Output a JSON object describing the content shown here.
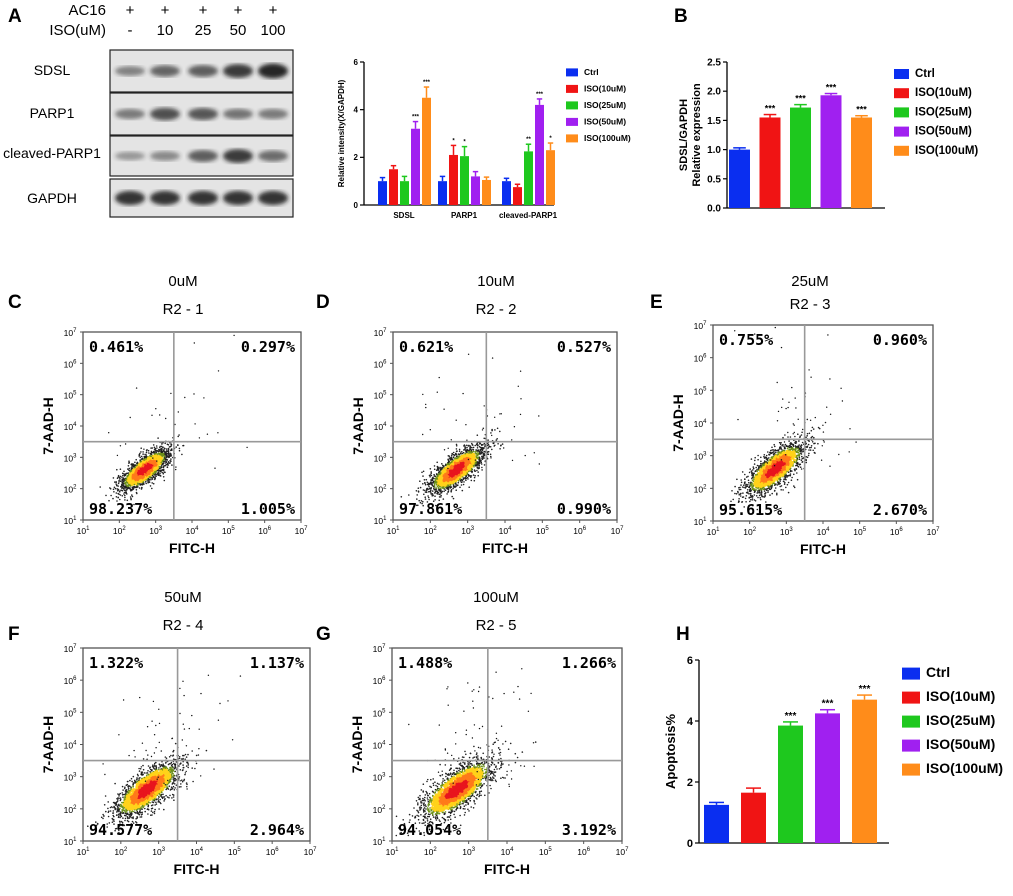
{
  "colors": {
    "ctrl": "#0a2ef0",
    "iso10": "#f01414",
    "iso25": "#1ec81e",
    "iso50": "#a020f0",
    "iso100": "#ff8c1a",
    "quad_line": "#999999",
    "frame": "#555555"
  },
  "panel_labels": [
    "A",
    "B",
    "C",
    "D",
    "E",
    "F",
    "G",
    "H"
  ],
  "western_blot": {
    "treatment_labels": [
      "AC16",
      "ISO(uM)"
    ],
    "ac16_row": [
      "+",
      "+",
      "+",
      "+",
      "+"
    ],
    "iso_row": [
      "-",
      "10",
      "25",
      "50",
      "100"
    ],
    "bands": [
      "SDSL",
      "PARP1",
      "cleaved-PARP1",
      "GAPDH"
    ],
    "intensity": [
      [
        0.35,
        0.55,
        0.6,
        0.85,
        1.0
      ],
      [
        0.4,
        0.7,
        0.65,
        0.45,
        0.4
      ],
      [
        0.2,
        0.3,
        0.6,
        0.85,
        0.5
      ],
      [
        0.9,
        0.9,
        0.9,
        0.9,
        0.9
      ]
    ]
  },
  "chart_data": [
    {
      "id": "A-quant",
      "type": "bar",
      "title": "",
      "xlabel": "",
      "ylabel": "Relative intensity(X/GAPDH)",
      "ylim": [
        0,
        6
      ],
      "yticks": [
        "0",
        "2",
        "4",
        "6"
      ],
      "categories": [
        "SDSL",
        "PARP1",
        "cleaved-PARP1"
      ],
      "series": [
        {
          "name": "Ctrl",
          "color_key": "ctrl",
          "values": [
            1.0,
            1.0,
            1.0
          ],
          "errors": [
            0.15,
            0.2,
            0.12
          ],
          "sig": [
            "",
            "",
            ""
          ]
        },
        {
          "name": "ISO(10uM)",
          "color_key": "iso10",
          "values": [
            1.5,
            2.1,
            0.75
          ],
          "errors": [
            0.15,
            0.4,
            0.12
          ],
          "sig": [
            "",
            "*",
            ""
          ]
        },
        {
          "name": "ISO(25uM)",
          "color_key": "iso25",
          "values": [
            1.0,
            2.05,
            2.25
          ],
          "errors": [
            0.2,
            0.4,
            0.3
          ],
          "sig": [
            "",
            "*",
            "**"
          ]
        },
        {
          "name": "ISO(50uM)",
          "color_key": "iso50",
          "values": [
            3.2,
            1.2,
            4.2
          ],
          "errors": [
            0.3,
            0.2,
            0.25
          ],
          "sig": [
            "***",
            "",
            "***"
          ]
        },
        {
          "name": "ISO(100uM)",
          "color_key": "iso100",
          "values": [
            4.5,
            1.05,
            2.3
          ],
          "errors": [
            0.45,
            0.12,
            0.3
          ],
          "sig": [
            "***",
            "",
            "*"
          ]
        }
      ]
    },
    {
      "id": "B",
      "type": "bar",
      "title": "",
      "xlabel": "",
      "ylabel": "SDSL/GAPDH Relative expression",
      "ylabel_lines": [
        "SDSL/GAPDH",
        "Relative expression"
      ],
      "ylim": [
        0,
        2.5
      ],
      "yticks": [
        "0.0",
        "0.5",
        "1.0",
        "1.5",
        "2.0",
        "2.5"
      ],
      "categories": [
        "Ctrl",
        "ISO(10uM)",
        "ISO(25uM)",
        "ISO(50uM)",
        "ISO(100uM)"
      ],
      "color_keys": [
        "ctrl",
        "iso10",
        "iso25",
        "iso50",
        "iso100"
      ],
      "values": [
        1.0,
        1.55,
        1.72,
        1.93,
        1.55
      ],
      "errors": [
        0.03,
        0.05,
        0.05,
        0.03,
        0.03
      ],
      "sig": [
        "",
        "***",
        "***",
        "***",
        "***"
      ]
    },
    {
      "id": "H",
      "type": "bar",
      "title": "",
      "xlabel": "",
      "ylabel": "Apoptosis%",
      "ylim": [
        0,
        6
      ],
      "yticks": [
        "0",
        "2",
        "4",
        "6"
      ],
      "categories": [
        "Ctrl",
        "ISO(10uM)",
        "ISO(25uM)",
        "ISO(50uM)",
        "ISO(100uM)"
      ],
      "color_keys": [
        "ctrl",
        "iso10",
        "iso25",
        "iso50",
        "iso100"
      ],
      "values": [
        1.25,
        1.65,
        3.85,
        4.25,
        4.7
      ],
      "errors": [
        0.08,
        0.15,
        0.12,
        0.12,
        0.15
      ],
      "sig": [
        "",
        "",
        "***",
        "***",
        "***"
      ]
    },
    {
      "id": "flow-cytometry",
      "type": "scatter",
      "xlabel": "FITC-H",
      "ylabel": "7-AAD-H",
      "x_scale": "log10",
      "y_scale": "log10",
      "tick_base": "10",
      "tick_exps": [
        "1",
        "2",
        "3",
        "4",
        "5",
        "6",
        "7"
      ],
      "xlim": [
        10,
        10000000
      ],
      "ylim": [
        10,
        10000000
      ],
      "panels": [
        {
          "label": "C",
          "dose": "0uM",
          "gate": "R2 - 1",
          "quadrants": [
            "0.461%",
            "0.297%",
            "98.237%",
            "1.005%"
          ]
        },
        {
          "label": "D",
          "dose": "10uM",
          "gate": "R2 - 2",
          "quadrants": [
            "0.621%",
            "0.527%",
            "97.861%",
            "0.990%"
          ]
        },
        {
          "label": "E",
          "dose": "25uM",
          "gate": "R2 - 3",
          "quadrants": [
            "0.755%",
            "0.960%",
            "95.615%",
            "2.670%"
          ]
        },
        {
          "label": "F",
          "dose": "50uM",
          "gate": "R2 - 4",
          "quadrants": [
            "1.322%",
            "1.137%",
            "94.577%",
            "2.964%"
          ]
        },
        {
          "label": "G",
          "dose": "100uM",
          "gate": "R2 - 5",
          "quadrants": [
            "1.488%",
            "1.266%",
            "94.054%",
            "3.192%"
          ]
        }
      ]
    }
  ]
}
